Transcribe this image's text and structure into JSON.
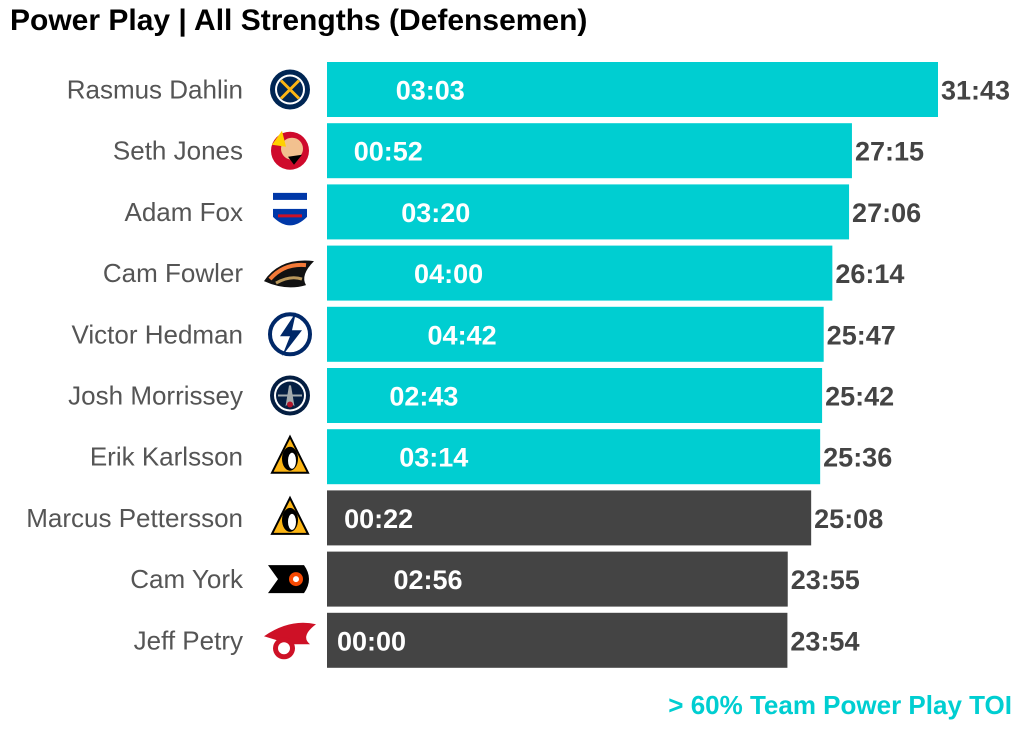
{
  "title": "Power Play | All Strengths (Defensemen)",
  "footnote": "> 60% Team Power Play TOI",
  "colors": {
    "highlight": "#00CED1",
    "other": "#444444",
    "name_text": "#555555",
    "title": "#000000"
  },
  "chart_data": {
    "type": "bar",
    "orientation": "horizontal",
    "title": "Power Play | All Strengths (Defensemen)",
    "annotation": "> 60% Team Power Play TOI",
    "categories": [
      "Rasmus Dahlin",
      "Seth Jones",
      "Adam Fox",
      "Cam Fowler",
      "Victor Hedman",
      "Josh Morrissey",
      "Erik Karlsson",
      "Marcus Pettersson",
      "Cam York",
      "Jeff Petry"
    ],
    "values": [
      "31:43",
      "27:15",
      "27:06",
      "26:14",
      "25:47",
      "25:42",
      "25:36",
      "25:08",
      "23:55",
      "23:54"
    ],
    "values_minutes": [
      31.717,
      27.25,
      27.1,
      26.233,
      25.783,
      25.7,
      25.6,
      25.133,
      23.917,
      23.9
    ],
    "inner_labels": [
      "03:03",
      "00:52",
      "03:20",
      "04:00",
      "04:42",
      "02:43",
      "03:14",
      "00:22",
      "02:56",
      "00:00"
    ],
    "inner_values_minutes": [
      3.05,
      0.867,
      3.333,
      4.0,
      4.7,
      2.717,
      3.233,
      0.367,
      2.933,
      0.0
    ],
    "highlighted": [
      true,
      true,
      true,
      true,
      true,
      true,
      true,
      false,
      false,
      false
    ],
    "teams": [
      "Buffalo Sabres",
      "Chicago Blackhawks",
      "New York Rangers",
      "Anaheim Ducks",
      "Tampa Bay Lightning",
      "Winnipeg Jets",
      "Pittsburgh Penguins",
      "Pittsburgh Penguins",
      "Philadelphia Flyers",
      "Detroit Red Wings"
    ],
    "team_icons": [
      "sabres-logo-icon",
      "blackhawks-logo-icon",
      "rangers-logo-icon",
      "ducks-logo-icon",
      "lightning-logo-icon",
      "jets-logo-icon",
      "penguins-logo-icon",
      "penguins-logo-icon",
      "flyers-logo-icon",
      "red-wings-logo-icon"
    ],
    "xlim": [
      0,
      31.717
    ],
    "grid": false,
    "legend": "none"
  }
}
